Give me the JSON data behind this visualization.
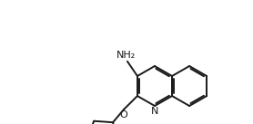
{
  "bg_color": "#ffffff",
  "line_color": "#1a1a1a",
  "line_width": 1.4,
  "font_size_NH2": 8.0,
  "font_size_label": 7.5,
  "label_NH2": "NH₂",
  "label_O": "O",
  "label_N": "N",
  "fig_width": 2.78,
  "fig_height": 1.37,
  "dpi": 100,
  "xmin": 0,
  "xmax": 278,
  "ymin": 0,
  "ymax": 137
}
